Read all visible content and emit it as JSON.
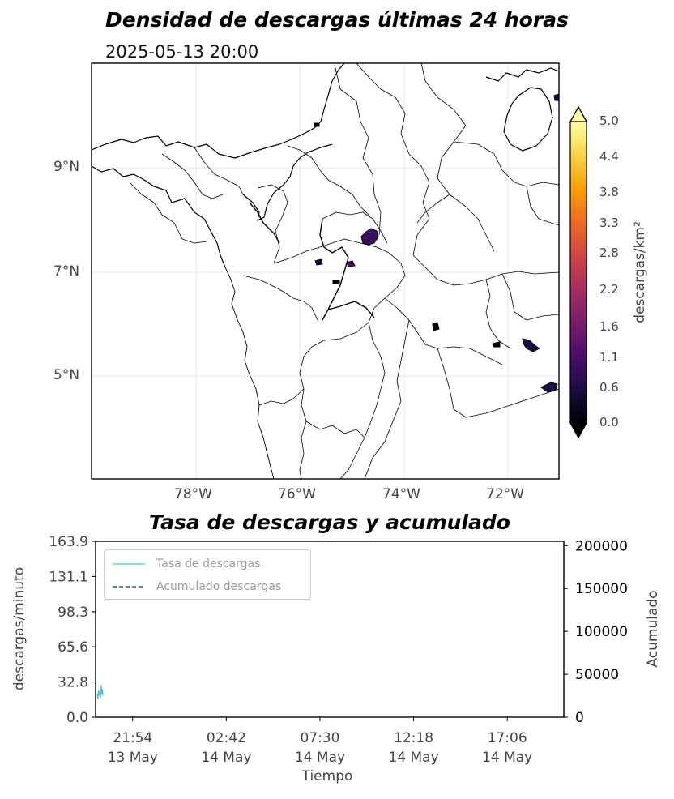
{
  "map": {
    "title": "Densidad de descargas últimas 24 horas",
    "subtitle": "2025-05-13 20:00",
    "colorbar_label": "descargas/km²",
    "colorbar_ticks": [
      "0.0",
      "0.6",
      "1.1",
      "1.6",
      "2.2",
      "2.8",
      "3.3",
      "3.8",
      "4.4",
      "5.0"
    ],
    "colormap": "inferno",
    "colors": [
      "#000004",
      "#1b0c41",
      "#4a0c6b",
      "#781c6d",
      "#a52c60",
      "#cf4446",
      "#ed6925",
      "#fb9b06",
      "#f7d13d",
      "#fcffa4"
    ],
    "lat_ticks": [
      "9°N",
      "7°N",
      "5°N"
    ],
    "lon_ticks": [
      "78°W",
      "76°W",
      "74°W",
      "72°W"
    ]
  },
  "chart_data": {
    "type": "line",
    "title": "Tasa de descargas y acumulado",
    "xlabel": "Tiempo",
    "ylabel": "descargas/minuto",
    "ylabel_right": "Acumulado",
    "x_ticks": [
      {
        "time": "21:54",
        "date": "13 May"
      },
      {
        "time": "02:42",
        "date": "14 May"
      },
      {
        "time": "07:30",
        "date": "14 May"
      },
      {
        "time": "12:18",
        "date": "14 May"
      },
      {
        "time": "17:06",
        "date": "14 May"
      }
    ],
    "y_ticks": [
      "163.9",
      "131.1",
      "98.3",
      "65.6",
      "32.8",
      "0.0"
    ],
    "ylim": [
      0,
      163.9
    ],
    "y2_ticks": [
      "200000",
      "150000",
      "100000",
      "50000",
      "0"
    ],
    "y2lim": [
      0,
      205000
    ],
    "xlim": [
      "2025-05-13 20:00",
      "2025-05-14 20:00"
    ],
    "legend": [
      "Tasa de descargas",
      "Acumulado descargas"
    ],
    "legend_position": "top-left",
    "grid": false,
    "series": [
      {
        "name": "Tasa de descargas",
        "color": "#5bc0c0",
        "style": "solid",
        "x": [
          "2025-05-13 20:05",
          "2025-05-13 20:07",
          "2025-05-13 20:09",
          "2025-05-13 20:11",
          "2025-05-13 20:13",
          "2025-05-13 20:15",
          "2025-05-13 20:17",
          "2025-05-13 20:19",
          "2025-05-13 20:21",
          "2025-05-13 20:23"
        ],
        "values": [
          22,
          17,
          25,
          20,
          24,
          18,
          30,
          21,
          26,
          20
        ]
      },
      {
        "name": "Acumulado descargas",
        "color": "#2b6a8a",
        "style": "dashed",
        "x": [],
        "values": []
      }
    ]
  }
}
